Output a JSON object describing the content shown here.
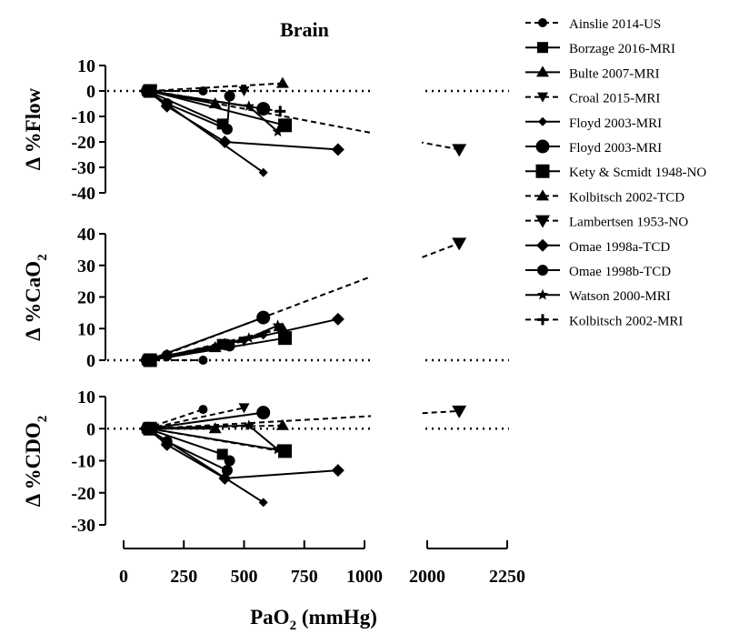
{
  "chart_data": {
    "type": "line",
    "title": "Brain",
    "xlabel": {
      "main": "PaO",
      "sub": "2",
      "unit": " (mmHg)"
    },
    "x_axis": {
      "broken": true,
      "segments": [
        {
          "range": [
            0,
            1000
          ]
        },
        {
          "range": [
            2000,
            2250
          ]
        }
      ],
      "tick_labels": [
        "0",
        "250",
        "500",
        "750",
        "1000",
        "2000",
        "2250"
      ],
      "tick_values": [
        0,
        250,
        500,
        750,
        1000,
        2000,
        2250
      ]
    },
    "panels": [
      {
        "id": "flow",
        "ylabel": {
          "prefix": "Δ %Flow",
          "sub": ""
        },
        "ylim": [
          -40,
          10
        ],
        "yticks": [
          "10",
          "0",
          "-10",
          "-20",
          "-30",
          "-40"
        ],
        "ytick_values": [
          10,
          0,
          -10,
          -20,
          -30,
          -40
        ],
        "series": [
          {
            "name": "Ainslie 2014-US",
            "points": [
              [
                90,
                0
              ],
              [
                330,
                0
              ]
            ]
          },
          {
            "name": "Borzage 2016-MRI",
            "points": [
              [
                100,
                0
              ],
              [
                410,
                -13
              ]
            ]
          },
          {
            "name": "Bulte 2007-MRI",
            "points": [
              [
                100,
                0
              ],
              [
                380,
                -5
              ]
            ]
          },
          {
            "name": "Croal 2015-MRI",
            "points": [
              [
                100,
                0
              ],
              [
                500,
                0
              ]
            ]
          },
          {
            "name": "Floyd 2003-MRI",
            "points": [
              [
                100,
                0
              ],
              [
                580,
                -32
              ]
            ]
          },
          {
            "name": "Floyd 2003-MRI",
            "points": [
              [
                100,
                0
              ],
              [
                580,
                -7
              ]
            ]
          },
          {
            "name": "Kety & Scmidt 1948-NO",
            "points": [
              [
                110,
                0
              ],
              [
                670,
                -13.5
              ]
            ]
          },
          {
            "name": "Kolbitsch 2002-TCD",
            "points": [
              [
                110,
                0
              ],
              [
                660,
                3
              ]
            ]
          },
          {
            "name": "Lambertsen 1953-NO",
            "points": [
              [
                110,
                0
              ],
              [
                2100,
                -23
              ]
            ]
          },
          {
            "name": "Omae 1998a-TCD",
            "points": [
              [
                100,
                0
              ],
              [
                180,
                -6
              ],
              [
                420,
                -20
              ],
              [
                890,
                -23
              ]
            ]
          },
          {
            "name": "Omae 1998b-TCD",
            "points": [
              [
                100,
                0
              ],
              [
                180,
                -5
              ],
              [
                430,
                -15
              ],
              [
                440,
                -2
              ]
            ]
          },
          {
            "name": "Watson 2000-MRI",
            "points": [
              [
                100,
                0
              ],
              [
                520,
                -6
              ],
              [
                640,
                -16
              ]
            ]
          },
          {
            "name": "Kolbitsch 2002-MRI",
            "points": [
              [
                110,
                0
              ],
              [
                650,
                -8
              ]
            ]
          }
        ]
      },
      {
        "id": "cao2",
        "ylabel": {
          "prefix": "Δ %CaO",
          "sub": "2"
        },
        "ylim": [
          0,
          40
        ],
        "yticks": [
          "40",
          "30",
          "20",
          "10",
          "0"
        ],
        "ytick_values": [
          40,
          30,
          20,
          10,
          0
        ],
        "series": [
          {
            "name": "Ainslie 2014-US",
            "points": [
              [
                90,
                0
              ],
              [
                330,
                0
              ]
            ]
          },
          {
            "name": "Borzage 2016-MRI",
            "points": [
              [
                100,
                0
              ],
              [
                410,
                5
              ]
            ]
          },
          {
            "name": "Bulte 2007-MRI",
            "points": [
              [
                100,
                0
              ],
              [
                380,
                4
              ]
            ]
          },
          {
            "name": "Croal 2015-MRI",
            "points": [
              [
                100,
                0
              ],
              [
                500,
                6
              ]
            ]
          },
          {
            "name": "Floyd 2003-MRI",
            "points": [
              [
                100,
                0
              ],
              [
                580,
                8
              ]
            ]
          },
          {
            "name": "Floyd 2003-MRI",
            "points": [
              [
                100,
                0
              ],
              [
                580,
                13.5
              ]
            ]
          },
          {
            "name": "Kety & Scmidt 1948-NO",
            "points": [
              [
                110,
                0
              ],
              [
                670,
                7
              ]
            ]
          },
          {
            "name": "Kolbitsch 2002-TCD",
            "points": [
              [
                110,
                0
              ],
              [
                660,
                10
              ]
            ]
          },
          {
            "name": "Lambertsen 1953-NO",
            "points": [
              [
                110,
                0
              ],
              [
                2100,
                37
              ]
            ]
          },
          {
            "name": "Omae 1998a-TCD",
            "points": [
              [
                100,
                0
              ],
              [
                180,
                1.5
              ],
              [
                420,
                5
              ],
              [
                890,
                13
              ]
            ]
          },
          {
            "name": "Omae 1998b-TCD",
            "points": [
              [
                100,
                0
              ],
              [
                180,
                1.5
              ],
              [
                430,
                5
              ],
              [
                440,
                4.5
              ]
            ]
          },
          {
            "name": "Watson 2000-MRI",
            "points": [
              [
                100,
                0
              ],
              [
                520,
                7
              ],
              [
                640,
                11
              ]
            ]
          },
          {
            "name": "Kolbitsch 2002-MRI",
            "points": [
              [
                110,
                0
              ],
              [
                650,
                10
              ]
            ]
          }
        ]
      },
      {
        "id": "cdo2",
        "ylabel": {
          "prefix": "Δ %CDO",
          "sub": "2"
        },
        "ylim": [
          -30,
          10
        ],
        "yticks": [
          "10",
          "0",
          "-10",
          "-20",
          "-30"
        ],
        "ytick_values": [
          10,
          0,
          -10,
          -20,
          -30
        ],
        "series": [
          {
            "name": "Ainslie 2014-US",
            "points": [
              [
                90,
                0
              ],
              [
                330,
                6
              ]
            ]
          },
          {
            "name": "Borzage 2016-MRI",
            "points": [
              [
                100,
                0
              ],
              [
                410,
                -8
              ]
            ]
          },
          {
            "name": "Bulte 2007-MRI",
            "points": [
              [
                100,
                0
              ],
              [
                380,
                0
              ]
            ]
          },
          {
            "name": "Croal 2015-MRI",
            "points": [
              [
                100,
                0
              ],
              [
                500,
                6.5
              ]
            ]
          },
          {
            "name": "Floyd 2003-MRI",
            "points": [
              [
                100,
                0
              ],
              [
                580,
                -23
              ]
            ]
          },
          {
            "name": "Floyd 2003-MRI",
            "points": [
              [
                100,
                0
              ],
              [
                580,
                5
              ]
            ]
          },
          {
            "name": "Kety & Scmidt 1948-NO",
            "points": [
              [
                110,
                0
              ],
              [
                670,
                -7
              ]
            ]
          },
          {
            "name": "Kolbitsch 2002-TCD",
            "points": [
              [
                110,
                0
              ],
              [
                660,
                1
              ]
            ]
          },
          {
            "name": "Lambertsen 1953-NO",
            "points": [
              [
                110,
                0
              ],
              [
                2100,
                5.5
              ]
            ]
          },
          {
            "name": "Omae 1998a-TCD",
            "points": [
              [
                100,
                0
              ],
              [
                180,
                -5
              ],
              [
                420,
                -15.5
              ],
              [
                890,
                -13
              ]
            ]
          },
          {
            "name": "Omae 1998b-TCD",
            "points": [
              [
                100,
                0
              ],
              [
                180,
                -4
              ],
              [
                430,
                -13
              ],
              [
                440,
                -10
              ]
            ]
          },
          {
            "name": "Watson 2000-MRI",
            "points": [
              [
                100,
                0
              ],
              [
                520,
                1
              ],
              [
                640,
                -6.5
              ]
            ]
          },
          {
            "name": "Kolbitsch 2002-MRI",
            "points": [
              [
                110,
                0
              ],
              [
                650,
                -7
              ]
            ]
          }
        ]
      }
    ],
    "legend": {
      "placement": "right",
      "entries": [
        {
          "label": "Ainslie 2014-US",
          "marker": "circle-small",
          "dashed": true
        },
        {
          "label": "Borzage 2016-MRI",
          "marker": "square",
          "dashed": false
        },
        {
          "label": "Bulte 2007-MRI",
          "marker": "triangle-up",
          "dashed": false
        },
        {
          "label": "Croal 2015-MRI",
          "marker": "triangle-down",
          "dashed": true
        },
        {
          "label": "Floyd 2003-MRI",
          "marker": "diamond-small",
          "dashed": false
        },
        {
          "label": "Floyd 2003-MRI",
          "marker": "circle-large",
          "dashed": false
        },
        {
          "label": "Kety & Scmidt 1948-NO",
          "marker": "square-large",
          "dashed": false
        },
        {
          "label": "Kolbitsch 2002-TCD",
          "marker": "triangle-up",
          "dashed": true
        },
        {
          "label": "Lambertsen 1953-NO",
          "marker": "triangle-down-large",
          "dashed": true
        },
        {
          "label": "Omae 1998a-TCD",
          "marker": "diamond",
          "dashed": false
        },
        {
          "label": "Omae 1998b-TCD",
          "marker": "circle",
          "dashed": false
        },
        {
          "label": "Watson 2000-MRI",
          "marker": "star",
          "dashed": false
        },
        {
          "label": "Kolbitsch 2002-MRI",
          "marker": "plus",
          "dashed": true
        }
      ]
    },
    "reference_line": {
      "y": 0,
      "style": "dotted"
    },
    "grid": false
  }
}
